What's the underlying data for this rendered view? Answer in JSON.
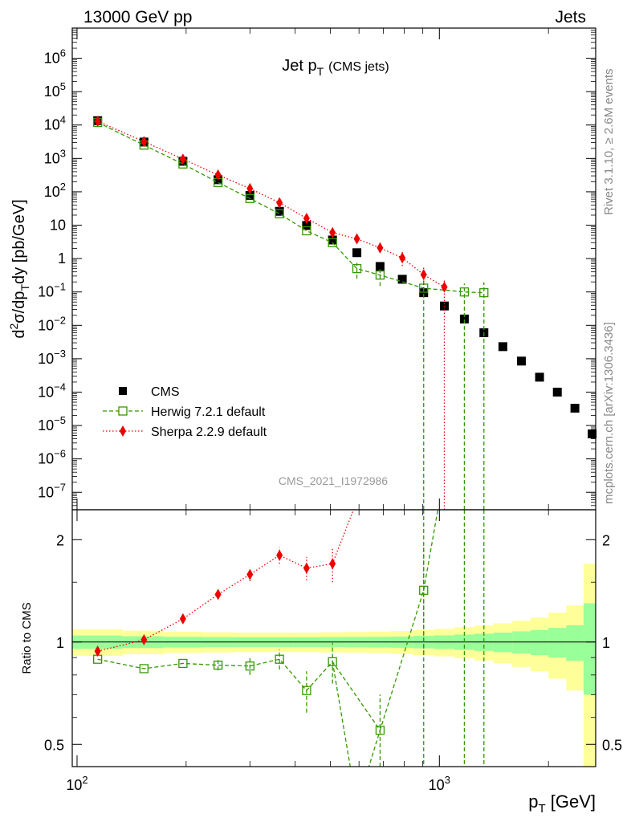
{
  "header": {
    "left": "13000 GeV pp",
    "right": "Jets"
  },
  "side_labels": {
    "top": "Rivet 3.1.10, ≥ 2.6M events",
    "bottom": "mcplots.cern.ch [arXiv:1306.3436]"
  },
  "chart_data": [
    {
      "type": "scatter",
      "panel": "main",
      "title": "Jet p_T (CMS jets)",
      "title_main": "Jet p",
      "title_sub": "T",
      "title_small": "(CMS jets)",
      "ylabel": "d²σ/dp_T dy [pb/GeV]",
      "ylabel_parts": {
        "a": "d",
        "b": "2",
        "c": "σ/dp",
        "d": "T",
        "e": "dy [pb/GeV]"
      },
      "yscale": "log",
      "xscale": "log",
      "xlim": [
        97,
        2700
      ],
      "ylim": [
        3e-08,
        8000000.0
      ],
      "yticks": [
        {
          "v": 1e-07,
          "base": "10",
          "exp": "−7"
        },
        {
          "v": 1e-06,
          "base": "10",
          "exp": "−6"
        },
        {
          "v": 1e-05,
          "base": "10",
          "exp": "−5"
        },
        {
          "v": 0.0001,
          "base": "10",
          "exp": "−4"
        },
        {
          "v": 0.001,
          "base": "10",
          "exp": "−3"
        },
        {
          "v": 0.01,
          "base": "10",
          "exp": "−2"
        },
        {
          "v": 0.1,
          "base": "10",
          "exp": "−1"
        },
        {
          "v": 1,
          "base": "1",
          "exp": ""
        },
        {
          "v": 10,
          "base": "10",
          "exp": ""
        },
        {
          "v": 100,
          "base": "10",
          "exp": "2"
        },
        {
          "v": 1000,
          "base": "10",
          "exp": "3"
        },
        {
          "v": 10000,
          "base": "10",
          "exp": "4"
        },
        {
          "v": 100000,
          "base": "10",
          "exp": "5"
        },
        {
          "v": 1000000,
          "base": "10",
          "exp": "6"
        }
      ],
      "watermark": "CMS_2021_I1972986",
      "legend_position": "bottom-left",
      "series": [
        {
          "name": "CMS",
          "color": "#000000",
          "marker": "filled-square",
          "x": [
            114,
            153,
            196,
            245,
            300,
            362,
            430,
            507,
            592,
            686,
            790,
            905,
            1032,
            1172,
            1327,
            1497,
            1684,
            1890,
            2116,
            2366,
            2640
          ],
          "y": [
            13500,
            3100,
            820,
            230,
            78,
            26,
            9.8,
            3.6,
            1.5,
            0.58,
            0.24,
            0.095,
            0.038,
            0.0155,
            0.006,
            0.0023,
            0.00085,
            0.00028,
            0.0001,
            3.3e-05,
            5.6e-06
          ]
        },
        {
          "name": "Herwig 7.2.1 default",
          "color": "#339900",
          "marker": "open-square",
          "line": "dashed",
          "x": [
            114,
            153,
            196,
            245,
            300,
            362,
            430,
            507,
            592,
            686,
            905,
            1172,
            1327
          ],
          "y": [
            12000,
            2500,
            680,
            190,
            63,
            22,
            6.8,
            3.0,
            0.5,
            0.32,
            0.13,
            0.1,
            0.095
          ],
          "yerr_low": [
            0,
            0,
            0,
            0,
            0,
            0,
            0,
            0,
            0.25,
            0.17,
            0.13,
            0.1,
            0.095
          ],
          "yerr_high": [
            0,
            0,
            0,
            0,
            0,
            0,
            0,
            0,
            0.25,
            0.18,
            0.14,
            0.08,
            0.1
          ]
        },
        {
          "name": "Sherpa 2.2.9 default",
          "color": "#ee0000",
          "marker": "filled-diamond",
          "line": "dotted",
          "x": [
            114,
            153,
            196,
            245,
            300,
            362,
            430,
            507,
            592,
            686,
            790,
            905,
            1032
          ],
          "y": [
            13000,
            3200,
            950,
            320,
            125,
            47,
            16,
            6,
            3.9,
            2.1,
            1.05,
            0.33,
            0.14
          ],
          "yerr_low": [
            0,
            0,
            0,
            0,
            0,
            0,
            0,
            0,
            0.6,
            0.6,
            0.45,
            0.2,
            0.14
          ],
          "yerr_high": [
            0,
            0,
            0,
            0,
            0,
            0,
            0,
            0,
            0.7,
            0.9,
            0.6,
            0.25,
            0.1
          ]
        }
      ]
    },
    {
      "type": "scatter",
      "panel": "ratio",
      "ylabel": "Ratio to CMS",
      "xlabel": "p_T [GeV]",
      "xlabel_parts": {
        "a": "p",
        "b": "T",
        "c": " [GeV]"
      },
      "xscale": "log",
      "yscale": "log",
      "xlim": [
        97,
        2700
      ],
      "ylim": [
        0.43,
        2.45
      ],
      "yticks": [
        {
          "v": 0.5,
          "label": "0.5"
        },
        {
          "v": 1,
          "label": "1"
        },
        {
          "v": 2,
          "label": "2"
        }
      ],
      "xticks": [
        {
          "v": 100,
          "base": "10",
          "exp": "2"
        },
        {
          "v": 1000,
          "base": "10",
          "exp": "3"
        }
      ],
      "uncertainty_band": {
        "edges": [
          97,
          133,
          173,
          220,
          272,
          330,
          395,
          468,
          548,
          637,
          735,
          845,
          965,
          1099,
          1248,
          1410,
          1590,
          1785,
          2000,
          2240,
          2500,
          2700
        ],
        "inner": [
          0.045,
          0.04,
          0.036,
          0.034,
          0.033,
          0.033,
          0.033,
          0.034,
          0.035,
          0.036,
          0.038,
          0.042,
          0.046,
          0.052,
          0.058,
          0.066,
          0.075,
          0.085,
          0.1,
          0.12,
          0.3
        ],
        "outer": [
          0.09,
          0.08,
          0.072,
          0.068,
          0.066,
          0.066,
          0.066,
          0.068,
          0.07,
          0.073,
          0.078,
          0.085,
          0.093,
          0.105,
          0.118,
          0.135,
          0.155,
          0.18,
          0.22,
          0.28,
          0.7
        ],
        "inner_color": "#99ff99",
        "outer_color": "#ffff99"
      },
      "series": [
        {
          "name": "Herwig 7.2.1 default",
          "color": "#339900",
          "marker": "open-square",
          "line": "dashed",
          "x": [
            114,
            153,
            196,
            245,
            300,
            362,
            430,
            507,
            686,
            905
          ],
          "y": [
            0.89,
            0.835,
            0.865,
            0.855,
            0.85,
            0.89,
            0.72,
            0.875,
            0.55,
            1.42
          ],
          "yerr": [
            0,
            0,
            0,
            0.03,
            0.05,
            0.06,
            0.1,
            0.12,
            0.15,
            0.5
          ],
          "offscale_segments": [
            {
              "from_x": 507,
              "from_y": 0.875,
              "to_x": 592,
              "to_y": 0.33
            },
            {
              "from_x": 592,
              "from_y": 0.33,
              "to_x": 686,
              "to_y": 0.55
            },
            {
              "from_x": 905,
              "from_y": 1.42,
              "to_x": 1000,
              "to_y": 2.6
            }
          ]
        },
        {
          "name": "Sherpa 2.2.9 default",
          "color": "#ee0000",
          "marker": "filled-diamond",
          "line": "dotted",
          "x": [
            114,
            153,
            196,
            245,
            300,
            362,
            430,
            507
          ],
          "y": [
            0.94,
            1.015,
            1.17,
            1.38,
            1.58,
            1.8,
            1.65,
            1.7
          ],
          "yerr": [
            0,
            0,
            0,
            0.04,
            0.07,
            0.1,
            0.13,
            0.2
          ],
          "offscale_segments": [
            {
              "from_x": 507,
              "from_y": 1.7,
              "to_x": 592,
              "to_y": 2.6
            }
          ]
        }
      ]
    }
  ]
}
